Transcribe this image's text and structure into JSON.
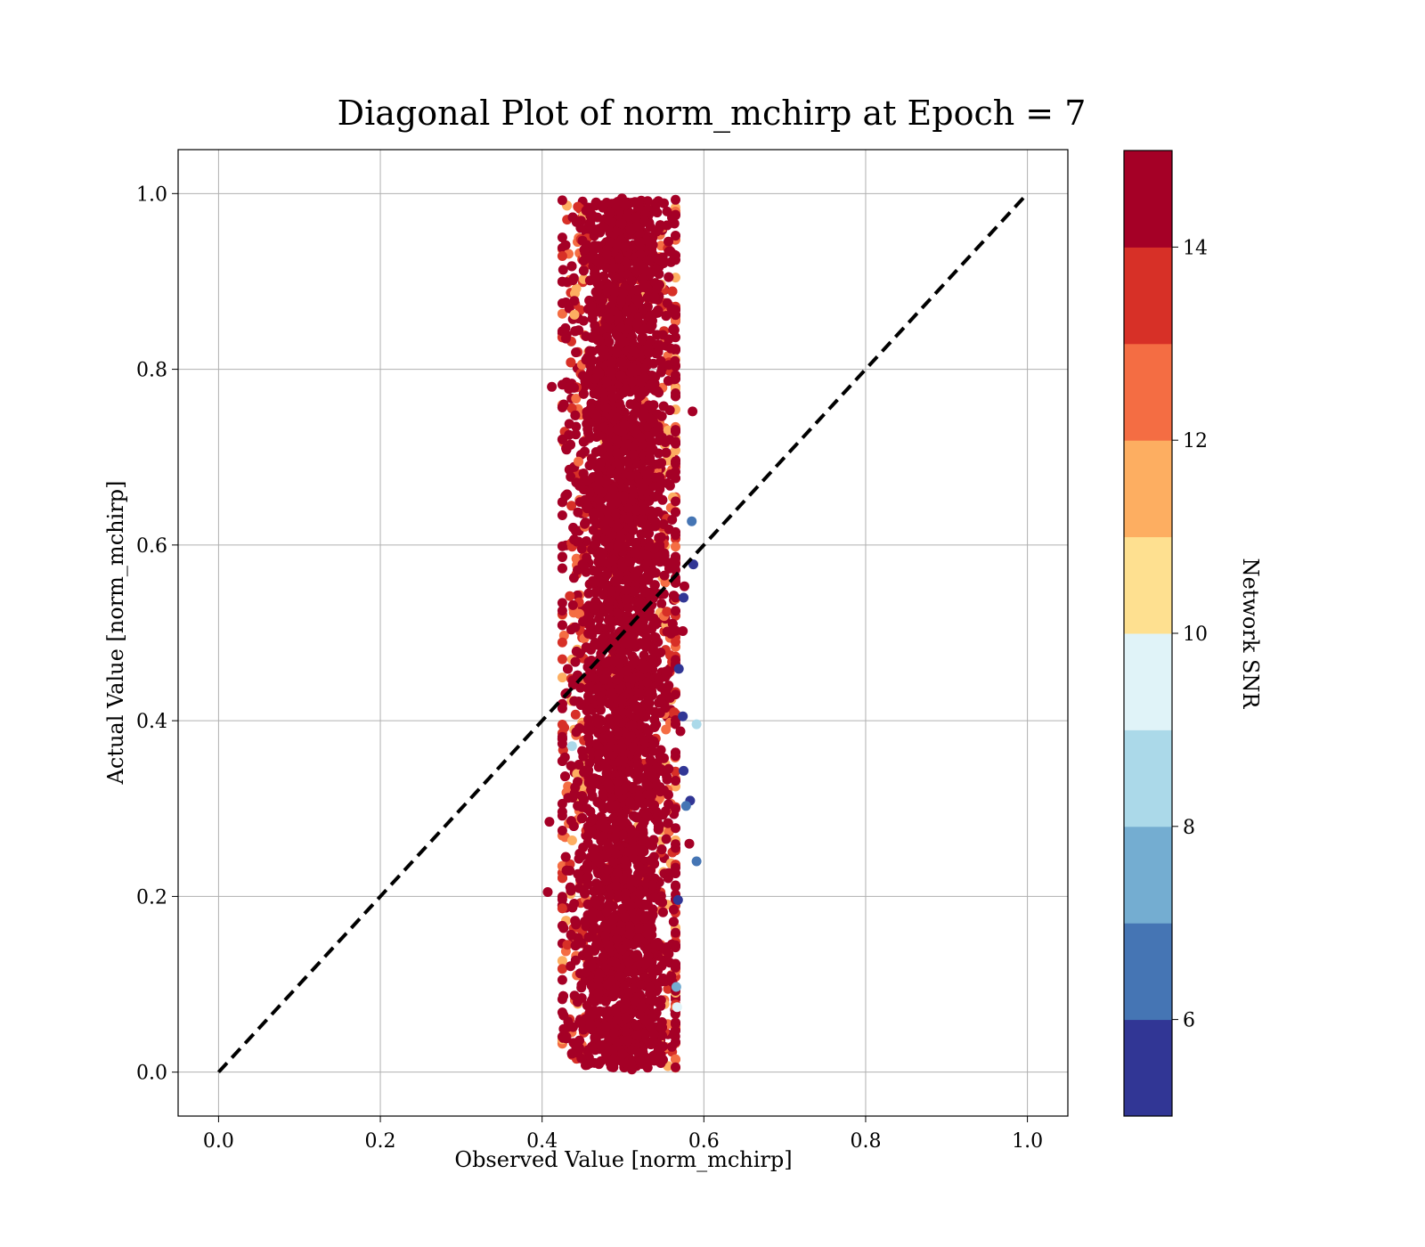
{
  "chart_data": {
    "type": "scatter",
    "title": "Diagonal Plot of norm_mchirp at Epoch = 7",
    "xlabel": "Observed Value [norm_mchirp]",
    "ylabel": "Actual Value [norm_mchirp]",
    "xlim": [
      -0.05,
      1.05
    ],
    "ylim": [
      -0.05,
      1.05
    ],
    "xticks": [
      "0.0",
      "0.2",
      "0.4",
      "0.6",
      "0.8",
      "1.0"
    ],
    "yticks": [
      "0.0",
      "0.2",
      "0.4",
      "0.6",
      "0.8",
      "1.0"
    ],
    "grid": true,
    "reference_line": {
      "x": [
        0.0,
        1.0
      ],
      "y": [
        0.0,
        1.0
      ],
      "style": "dashed",
      "color": "#000000"
    },
    "point_cloud": {
      "x_center": 0.5,
      "x_spread": 0.035,
      "x_min": 0.4,
      "x_max": 0.59,
      "y_min": 0.0,
      "y_max": 1.0,
      "dominant_snr": 15,
      "approx_points": 5000
    },
    "outliers": [
      {
        "x": 0.412,
        "y": 0.78,
        "snr": 15
      },
      {
        "x": 0.586,
        "y": 0.752,
        "snr": 15
      },
      {
        "x": 0.585,
        "y": 0.627,
        "snr": 6
      },
      {
        "x": 0.587,
        "y": 0.578,
        "snr": 5
      },
      {
        "x": 0.576,
        "y": 0.553,
        "snr": 14
      },
      {
        "x": 0.575,
        "y": 0.54,
        "snr": 5
      },
      {
        "x": 0.574,
        "y": 0.502,
        "snr": 14
      },
      {
        "x": 0.569,
        "y": 0.459,
        "snr": 5
      },
      {
        "x": 0.574,
        "y": 0.405,
        "snr": 5
      },
      {
        "x": 0.591,
        "y": 0.396,
        "snr": 8
      },
      {
        "x": 0.571,
        "y": 0.388,
        "snr": 14
      },
      {
        "x": 0.437,
        "y": 0.371,
        "snr": 8
      },
      {
        "x": 0.575,
        "y": 0.343,
        "snr": 5
      },
      {
        "x": 0.583,
        "y": 0.309,
        "snr": 5
      },
      {
        "x": 0.578,
        "y": 0.303,
        "snr": 6
      },
      {
        "x": 0.409,
        "y": 0.285,
        "snr": 15
      },
      {
        "x": 0.582,
        "y": 0.26,
        "snr": 15
      },
      {
        "x": 0.591,
        "y": 0.24,
        "snr": 6
      },
      {
        "x": 0.407,
        "y": 0.205,
        "snr": 15
      },
      {
        "x": 0.568,
        "y": 0.196,
        "snr": 5
      },
      {
        "x": 0.566,
        "y": 0.097,
        "snr": 7
      },
      {
        "x": 0.567,
        "y": 0.074,
        "snr": 9
      },
      {
        "x": 0.438,
        "y": 0.857,
        "snr": 15
      },
      {
        "x": 0.44,
        "y": 0.862,
        "snr": 11
      },
      {
        "x": 0.445,
        "y": 0.695,
        "snr": 12
      },
      {
        "x": 0.511,
        "y": 0.003,
        "snr": 15
      }
    ],
    "colorbar": {
      "label": "Network SNR",
      "range": [
        5,
        15
      ],
      "ticks": [
        "6",
        "8",
        "10",
        "12",
        "14"
      ],
      "colors": [
        "#313695",
        "#4575b4",
        "#74add1",
        "#abd9e9",
        "#e0f3f8",
        "#fee090",
        "#fdae61",
        "#f46d43",
        "#d73027",
        "#a50026"
      ]
    }
  }
}
